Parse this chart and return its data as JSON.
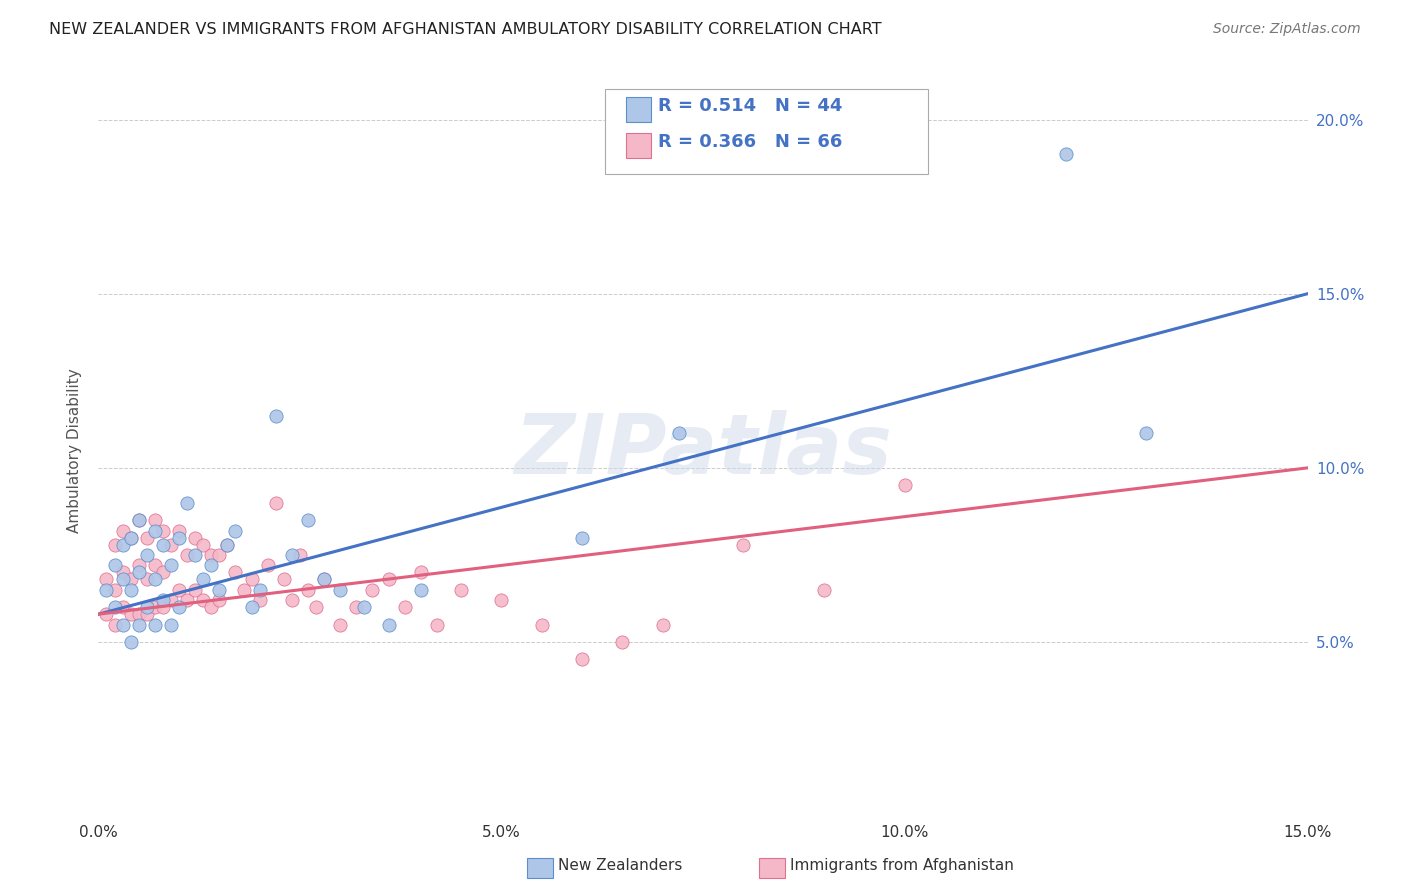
{
  "title": "NEW ZEALANDER VS IMMIGRANTS FROM AFGHANISTAN AMBULATORY DISABILITY CORRELATION CHART",
  "source": "Source: ZipAtlas.com",
  "ylabel": "Ambulatory Disability",
  "xmin": 0.0,
  "xmax": 0.15,
  "ymin": 0.0,
  "ymax": 0.21,
  "series1_name": "New Zealanders",
  "series1_R": "0.514",
  "series1_N": "44",
  "series1_color": "#aec6e8",
  "series1_edge_color": "#5b8fc9",
  "series1_line_color": "#4472c4",
  "series2_name": "Immigrants from Afghanistan",
  "series2_R": "0.366",
  "series2_N": "66",
  "series2_color": "#f4b8c8",
  "series2_edge_color": "#e07090",
  "series2_line_color": "#e0607e",
  "legend_color": "#4472c4",
  "watermark": "ZIPatlas",
  "xtick_labels": [
    "0.0%",
    "5.0%",
    "10.0%",
    "15.0%"
  ],
  "xtick_values": [
    0.0,
    0.05,
    0.1,
    0.15
  ],
  "ytick_labels": [
    "5.0%",
    "10.0%",
    "15.0%",
    "20.0%"
  ],
  "ytick_values": [
    0.05,
    0.1,
    0.15,
    0.2
  ],
  "line1_x0": 0.0,
  "line1_y0": 0.058,
  "line1_x1": 0.15,
  "line1_y1": 0.15,
  "line2_x0": 0.0,
  "line2_y0": 0.058,
  "line2_x1": 0.15,
  "line2_y1": 0.1,
  "s1_x": [
    0.001,
    0.002,
    0.002,
    0.003,
    0.003,
    0.003,
    0.004,
    0.004,
    0.004,
    0.005,
    0.005,
    0.005,
    0.006,
    0.006,
    0.007,
    0.007,
    0.007,
    0.008,
    0.008,
    0.009,
    0.009,
    0.01,
    0.01,
    0.011,
    0.012,
    0.013,
    0.014,
    0.015,
    0.016,
    0.017,
    0.019,
    0.02,
    0.022,
    0.024,
    0.026,
    0.028,
    0.03,
    0.033,
    0.036,
    0.04,
    0.06,
    0.072,
    0.12,
    0.13
  ],
  "s1_y": [
    0.065,
    0.072,
    0.06,
    0.078,
    0.068,
    0.055,
    0.08,
    0.065,
    0.05,
    0.085,
    0.07,
    0.055,
    0.075,
    0.06,
    0.082,
    0.068,
    0.055,
    0.078,
    0.062,
    0.072,
    0.055,
    0.08,
    0.06,
    0.09,
    0.075,
    0.068,
    0.072,
    0.065,
    0.078,
    0.082,
    0.06,
    0.065,
    0.115,
    0.075,
    0.085,
    0.068,
    0.065,
    0.06,
    0.055,
    0.065,
    0.08,
    0.11,
    0.19,
    0.11
  ],
  "s2_x": [
    0.001,
    0.001,
    0.002,
    0.002,
    0.002,
    0.003,
    0.003,
    0.003,
    0.004,
    0.004,
    0.004,
    0.005,
    0.005,
    0.005,
    0.006,
    0.006,
    0.006,
    0.007,
    0.007,
    0.007,
    0.008,
    0.008,
    0.008,
    0.009,
    0.009,
    0.01,
    0.01,
    0.011,
    0.011,
    0.012,
    0.012,
    0.013,
    0.013,
    0.014,
    0.014,
    0.015,
    0.015,
    0.016,
    0.017,
    0.018,
    0.019,
    0.02,
    0.021,
    0.022,
    0.023,
    0.024,
    0.025,
    0.026,
    0.027,
    0.028,
    0.03,
    0.032,
    0.034,
    0.036,
    0.038,
    0.04,
    0.042,
    0.045,
    0.05,
    0.055,
    0.06,
    0.065,
    0.07,
    0.08,
    0.09,
    0.1
  ],
  "s2_y": [
    0.068,
    0.058,
    0.078,
    0.065,
    0.055,
    0.082,
    0.07,
    0.06,
    0.08,
    0.068,
    0.058,
    0.085,
    0.072,
    0.058,
    0.08,
    0.068,
    0.058,
    0.085,
    0.072,
    0.06,
    0.082,
    0.07,
    0.06,
    0.078,
    0.062,
    0.082,
    0.065,
    0.075,
    0.062,
    0.08,
    0.065,
    0.078,
    0.062,
    0.075,
    0.06,
    0.075,
    0.062,
    0.078,
    0.07,
    0.065,
    0.068,
    0.062,
    0.072,
    0.09,
    0.068,
    0.062,
    0.075,
    0.065,
    0.06,
    0.068,
    0.055,
    0.06,
    0.065,
    0.068,
    0.06,
    0.07,
    0.055,
    0.065,
    0.062,
    0.055,
    0.045,
    0.05,
    0.055,
    0.078,
    0.065,
    0.095
  ]
}
